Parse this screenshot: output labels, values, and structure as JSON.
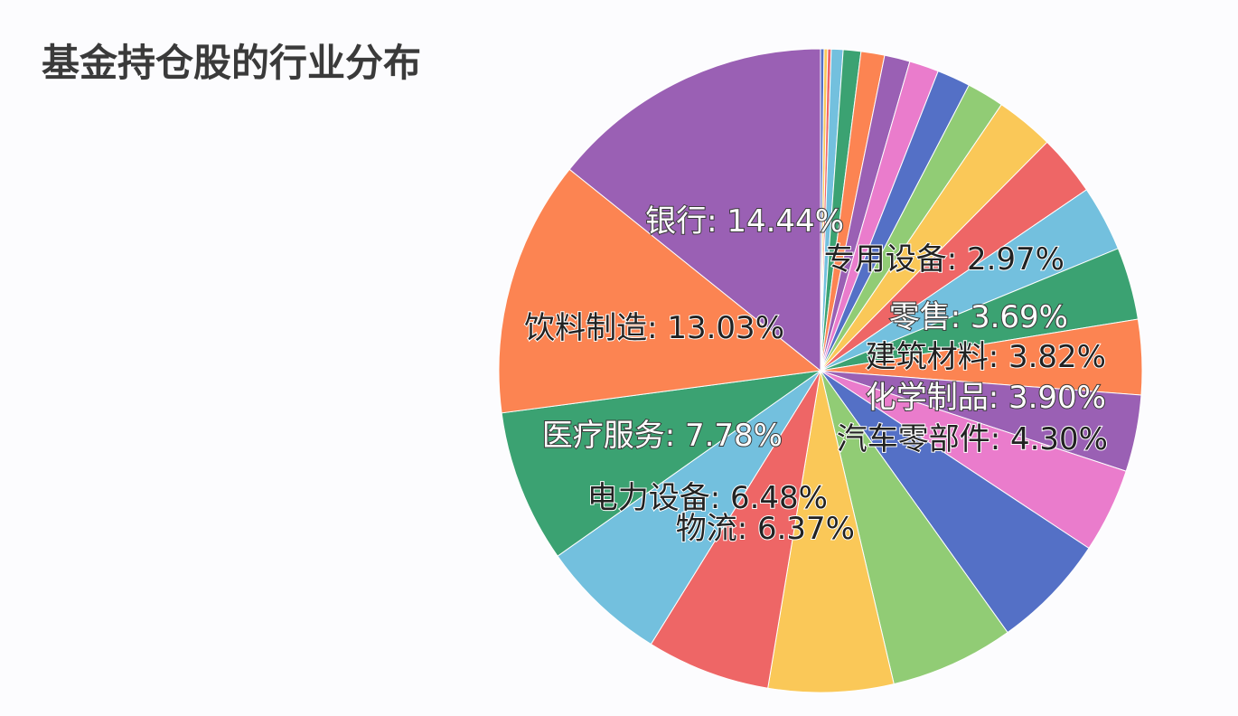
{
  "chart_data": {
    "type": "pie",
    "title": "基金持仓股的行业分布",
    "slices": [
      {
        "label": "",
        "value": 0.18,
        "color": "#5470c6"
      },
      {
        "label": "",
        "value": 0.18,
        "color": "#fac858"
      },
      {
        "label": "",
        "value": 0.18,
        "color": "#ee6666"
      },
      {
        "label": "",
        "value": 0.6,
        "color": "#73c0de"
      },
      {
        "label": "",
        "value": 0.9,
        "color": "#3ba272"
      },
      {
        "label": "",
        "value": 1.2,
        "color": "#fc8452"
      },
      {
        "label": "",
        "value": 1.3,
        "color": "#9a60b4"
      },
      {
        "label": "",
        "value": 1.5,
        "color": "#ea7ccc"
      },
      {
        "label": "",
        "value": 1.7,
        "color": "#5470c6"
      },
      {
        "label": "",
        "value": 1.9,
        "color": "#91cc75"
      },
      {
        "label": "专用设备",
        "value": 2.97,
        "color": "#fac858"
      },
      {
        "label": "",
        "value": 3.1,
        "color": "#ee6666"
      },
      {
        "label": "",
        "value": 3.35,
        "color": "#73c0de"
      },
      {
        "label": "零售",
        "value": 3.69,
        "color": "#3ba272"
      },
      {
        "label": "建筑材料",
        "value": 3.82,
        "color": "#fc8452"
      },
      {
        "label": "化学制品",
        "value": 3.9,
        "color": "#9a60b4"
      },
      {
        "label": "汽车零部件",
        "value": 4.3,
        "color": "#ea7ccc"
      },
      {
        "label": "",
        "value": 5.9,
        "color": "#5470c6"
      },
      {
        "label": "",
        "value": 6.3,
        "color": "#91cc75"
      },
      {
        "label": "物流",
        "value": 6.37,
        "color": "#fac858"
      },
      {
        "label": "",
        "value": 6.3,
        "color": "#ee6666"
      },
      {
        "label": "电力设备",
        "value": 6.48,
        "color": "#73c0de"
      },
      {
        "label": "医疗服务",
        "value": 7.78,
        "color": "#3ba272"
      },
      {
        "label": "饮料制造",
        "value": 13.03,
        "color": "#fc8452"
      },
      {
        "label": "银行",
        "value": 14.44,
        "color": "#9a60b4"
      }
    ],
    "data_labels": [
      {
        "text": "银行: 14.44%",
        "style": "light"
      },
      {
        "text": "专用设备: 2.97%",
        "style": "dark"
      },
      {
        "text": "饮料制造: 13.03%",
        "style": "dark"
      },
      {
        "text": "零售: 3.69%",
        "style": "light"
      },
      {
        "text": "建筑材料: 3.82%",
        "style": "dark"
      },
      {
        "text": "化学制品: 3.90%",
        "style": "light"
      },
      {
        "text": "医疗服务: 7.78%",
        "style": "light"
      },
      {
        "text": "汽车零部件: 4.30%",
        "style": "dark"
      },
      {
        "text": "电力设备: 6.48%",
        "style": "dark"
      },
      {
        "text": "物流: 6.37%",
        "style": "dark"
      }
    ]
  }
}
